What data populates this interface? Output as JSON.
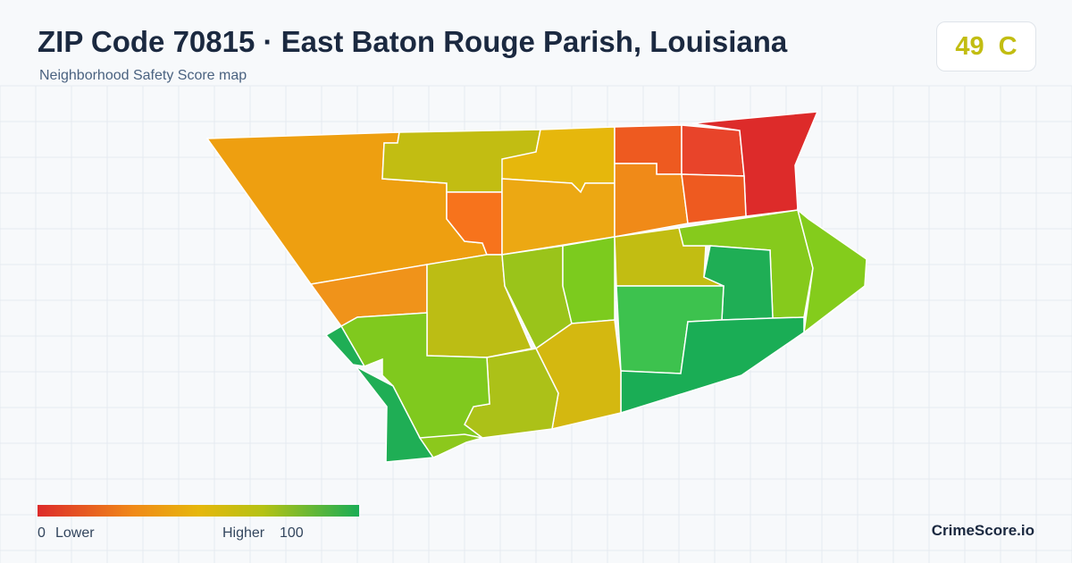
{
  "header": {
    "title": "ZIP Code 70815 · East Baton Rouge Parish, Louisiana",
    "subtitle": "Neighborhood Safety Score map"
  },
  "score": {
    "value": "49",
    "grade": "C"
  },
  "legend": {
    "min": "0",
    "min_label": "Lower",
    "max_label": "Higher",
    "max": "100"
  },
  "brand": "CrimeScore.io"
}
